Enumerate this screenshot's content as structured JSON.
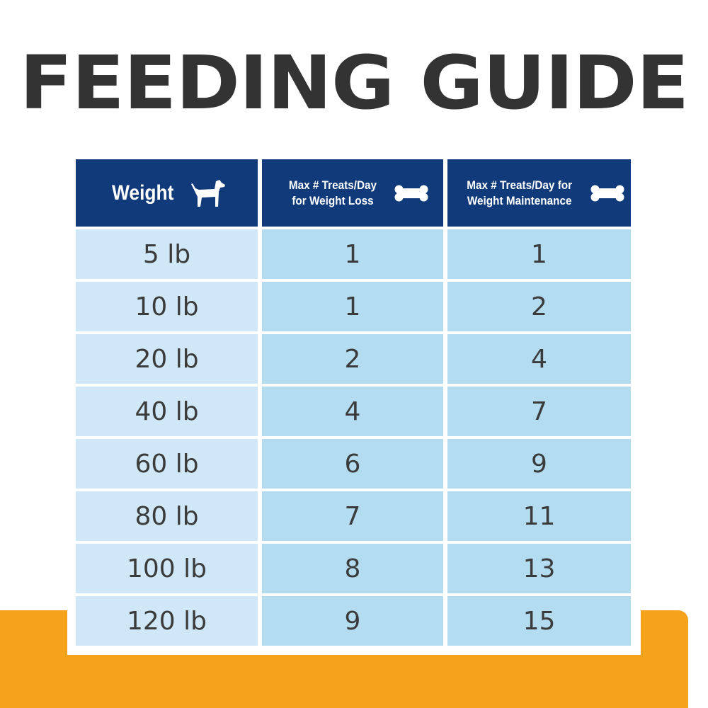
{
  "title": "FEEDING GUIDE",
  "header": {
    "weight": "Weight",
    "loss": [
      "Max # Treats/Day",
      "for Weight Loss"
    ],
    "maintenance": [
      "Max # Treats/Day for",
      "Weight Maintenance"
    ],
    "icons": [
      "dog-icon",
      "bone-icon",
      "bone-icon"
    ]
  },
  "rows": [
    {
      "weight": "5 lb",
      "loss": "1",
      "maintenance": "1"
    },
    {
      "weight": "10 lb",
      "loss": "1",
      "maintenance": "2"
    },
    {
      "weight": "20 lb",
      "loss": "2",
      "maintenance": "4"
    },
    {
      "weight": "40 lb",
      "loss": "4",
      "maintenance": "7"
    },
    {
      "weight": "60 lb",
      "loss": "6",
      "maintenance": "9"
    },
    {
      "weight": "80 lb",
      "loss": "7",
      "maintenance": "11"
    },
    {
      "weight": "100 lb",
      "loss": "8",
      "maintenance": "13"
    },
    {
      "weight": "120 lb",
      "loss": "9",
      "maintenance": "15"
    }
  ],
  "colors": {
    "header_bg": "#103a7a",
    "weight_cell_bg": "#cfe7f6",
    "value_cell_bg": "#b3dcf1",
    "title_text": "#333333",
    "accent_band": "#f5a21c"
  }
}
